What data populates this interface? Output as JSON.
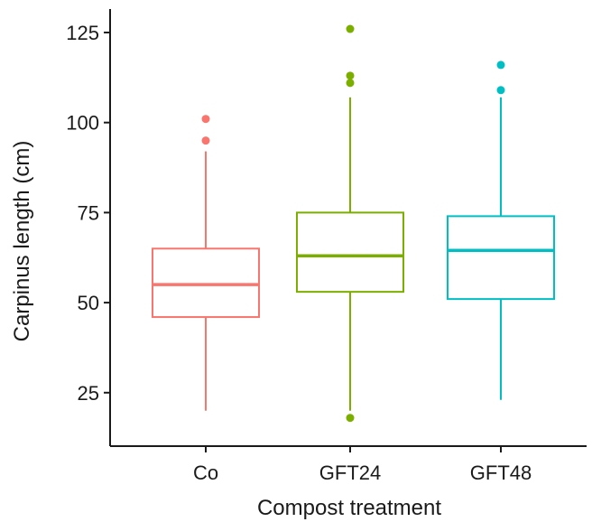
{
  "chart_data": {
    "type": "boxplot",
    "title": "",
    "xlabel": "Compost treatment",
    "ylabel": "Carpinus length (cm)",
    "ylim": [
      12,
      132
    ],
    "yticks": [
      25,
      50,
      75,
      100,
      125
    ],
    "grid": false,
    "legend": "none",
    "categories": [
      "Co",
      "GFT24",
      "GFT48"
    ],
    "series": [
      {
        "category": "Co",
        "color": "#F8766D",
        "whisker_low": 20,
        "q1": 46,
        "median": 55,
        "q3": 65,
        "whisker_high": 92,
        "outliers": [
          95,
          101
        ]
      },
      {
        "category": "GFT24",
        "color": "#7CAE00",
        "whisker_low": 20,
        "q1": 53,
        "median": 63,
        "q3": 75,
        "whisker_high": 107,
        "outliers": [
          18,
          111,
          113,
          126
        ]
      },
      {
        "category": "GFT48",
        "color": "#00BFC4",
        "whisker_low": 23,
        "q1": 51,
        "median": 64.5,
        "q3": 74,
        "whisker_high": 107,
        "outliers": [
          109,
          116
        ]
      }
    ]
  }
}
